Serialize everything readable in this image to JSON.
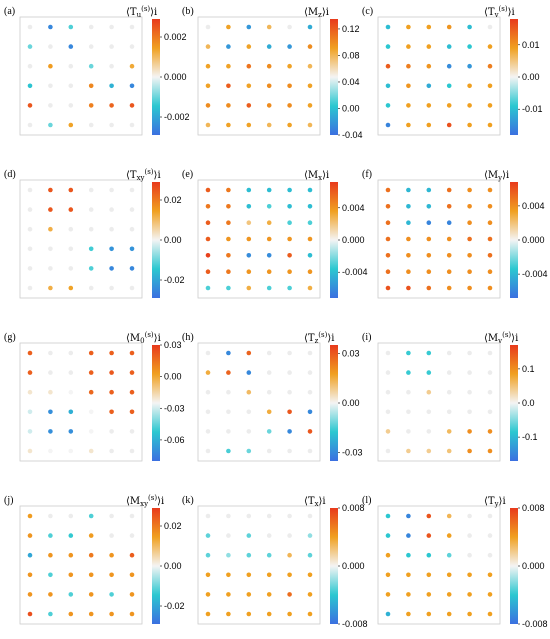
{
  "colors": {
    "stops": [
      [
        0.0,
        "#3b6fe0"
      ],
      [
        0.25,
        "#2bc7d0"
      ],
      [
        0.5,
        "#f4f4f4"
      ],
      [
        0.75,
        "#f0a020"
      ],
      [
        1.0,
        "#e83a1c"
      ]
    ],
    "frame": "#cccccc"
  },
  "chart_data": [
    {
      "type": "scatter",
      "label": "(a)",
      "quantity": "⟨T",
      "qty_sub": "u",
      "qty_sup": "(s)",
      "qty_tail": "⟩i",
      "cbar_range": [
        -0.0029,
        0.0029
      ],
      "cbar_ticks": [
        "0.002",
        "0.000",
        "-0.002"
      ],
      "cbar_tick_values": [
        0.002,
        0.0,
        -0.002
      ],
      "grid": [
        [
          0,
          -0.0025,
          -0.0012,
          0,
          0,
          0
        ],
        [
          -0.001,
          0.0,
          -0.0025,
          0,
          0,
          0
        ],
        [
          0,
          0.0015,
          0,
          -0.001,
          0,
          0.0013
        ],
        [
          -0.0015,
          0,
          0,
          0.0018,
          -0.0018,
          -0.0025
        ],
        [
          0.0025,
          0,
          0,
          0.0019,
          0.0023,
          0.0025
        ],
        [
          0,
          -0.001,
          0.0014,
          0,
          0,
          0
        ]
      ]
    },
    {
      "type": "scatter",
      "label": "(b)",
      "quantity": "⟨M",
      "qty_sub": "z",
      "qty_sup": "",
      "qty_tail": "⟩i",
      "cbar_range": [
        -0.04,
        0.135
      ],
      "cbar_ticks": [
        "0.12",
        "0.08",
        "0.04",
        "0.00",
        "-0.04"
      ],
      "cbar_tick_values": [
        0.12,
        0.08,
        0.04,
        0.0,
        -0.04
      ],
      "grid": [
        [
          0.0,
          0.09,
          -0.02,
          0.08,
          0.0,
          -0.01
        ],
        [
          0.08,
          -0.02,
          0.09,
          -0.01,
          -0.02,
          0.1
        ],
        [
          0.09,
          0.09,
          0.11,
          0.1,
          0.09,
          0.08
        ],
        [
          0.09,
          0.12,
          0.09,
          0.1,
          0.1,
          0.09
        ],
        [
          0.1,
          0.1,
          0.12,
          0.1,
          0.1,
          0.09
        ],
        [
          0.08,
          0.09,
          0.09,
          0.08,
          0.09,
          0.08
        ]
      ]
    },
    {
      "type": "scatter",
      "label": "(c)",
      "quantity": "⟨T",
      "qty_sub": "v",
      "qty_sup": "(s)",
      "qty_tail": "⟩i",
      "cbar_range": [
        -0.018,
        0.018
      ],
      "cbar_ticks": [
        "0.01",
        "0.00",
        "-0.01"
      ],
      "cbar_tick_values": [
        0.01,
        0.0,
        -0.01
      ],
      "grid": [
        [
          -0.01,
          0.009,
          0.009,
          0.01,
          -0.01,
          0.0
        ],
        [
          -0.009,
          0.009,
          0.009,
          -0.01,
          -0.009,
          0.009
        ],
        [
          0.015,
          0.012,
          0.01,
          -0.015,
          -0.014,
          0.012
        ],
        [
          -0.01,
          0.01,
          -0.012,
          -0.009,
          0.009,
          0.009
        ],
        [
          -0.009,
          0.009,
          0.009,
          0.009,
          0.009,
          0.009
        ],
        [
          -0.016,
          0.009,
          0.009,
          0.016,
          0.009,
          0.009
        ]
      ]
    },
    {
      "type": "scatter",
      "label": "(d)",
      "quantity": "⟨T",
      "qty_sub": "xy",
      "qty_sup": "(s)",
      "qty_tail": "⟩i",
      "cbar_range": [
        -0.029,
        0.029
      ],
      "cbar_ticks": [
        "0.02",
        "0.00",
        "-0.02"
      ],
      "cbar_tick_values": [
        0.02,
        0.0,
        -0.02
      ],
      "grid": [
        [
          0,
          0.025,
          0.025,
          0,
          0,
          0
        ],
        [
          0,
          0.025,
          0.025,
          0,
          0,
          0
        ],
        [
          0,
          0.012,
          0,
          0,
          0,
          0
        ],
        [
          0,
          0,
          0,
          -0.013,
          -0.023,
          -0.023
        ],
        [
          0,
          0,
          0,
          -0.012,
          -0.025,
          -0.025
        ],
        [
          0,
          0.012,
          0.014,
          0,
          0,
          0
        ]
      ]
    },
    {
      "type": "scatter",
      "label": "(e)",
      "quantity": "⟨M",
      "qty_sub": "x",
      "qty_sup": "",
      "qty_tail": "⟩i",
      "cbar_range": [
        -0.0072,
        0.0072
      ],
      "cbar_ticks": [
        "0.004",
        "0.000",
        "-0.004"
      ],
      "cbar_tick_values": [
        0.004,
        0.0,
        -0.004
      ],
      "grid": [
        [
          0.006,
          0.005,
          -0.004,
          -0.004,
          -0.004,
          -0.004
        ],
        [
          0.005,
          0.005,
          -0.004,
          -0.003,
          -0.004,
          -0.004
        ],
        [
          0.006,
          0.005,
          0.002,
          0.003,
          -0.003,
          -0.003
        ],
        [
          0.006,
          0.004,
          0.004,
          0.004,
          0.004,
          0.004
        ],
        [
          0.007,
          0.005,
          -0.006,
          -0.006,
          0.006,
          -0.004
        ],
        [
          0.006,
          0.005,
          0.004,
          0.004,
          0.004,
          0.004
        ],
        [
          -0.003,
          -0.003,
          0.003,
          -0.003,
          -0.003,
          0.003
        ]
      ]
    },
    {
      "type": "scatter",
      "label": "(f)",
      "quantity": "⟨M",
      "qty_sub": "y",
      "qty_sup": "",
      "qty_tail": "⟩i",
      "cbar_range": [
        -0.0068,
        0.0068
      ],
      "cbar_ticks": [
        "0.004",
        "0.000",
        "-0.004"
      ],
      "cbar_tick_values": [
        0.004,
        0.0,
        -0.004
      ],
      "grid": [
        [
          0.005,
          -0.004,
          -0.004,
          0.005,
          0.004,
          0.004
        ],
        [
          0.005,
          -0.004,
          -0.004,
          0.005,
          0.004,
          0.004
        ],
        [
          0.005,
          -0.004,
          -0.006,
          -0.006,
          0.004,
          0.004
        ],
        [
          0.005,
          0.004,
          0.004,
          0.004,
          0.005,
          0.005
        ],
        [
          0.005,
          0.004,
          0.004,
          0.004,
          0.004,
          0.005
        ],
        [
          0.005,
          0.004,
          0.004,
          0.004,
          0.004,
          0.004
        ],
        [
          0.006,
          0.006,
          0.005,
          0.004,
          0.004,
          0.004
        ]
      ]
    },
    {
      "type": "scatter",
      "label": "(g)",
      "quantity": "⟨M",
      "qty_sub": "0",
      "qty_sup": "(s)",
      "qty_tail": "⟩i",
      "cbar_range": [
        -0.08,
        0.03
      ],
      "cbar_ticks": [
        "0.03",
        "0.00",
        "-0.03",
        "-0.06"
      ],
      "cbar_tick_values": [
        0.03,
        0.0,
        -0.03,
        -0.06
      ],
      "grid": [
        [
          0.02,
          0,
          0,
          0.02,
          0.02,
          0.02
        ],
        [
          0.02,
          0,
          0,
          0.02,
          0.022,
          0.02
        ],
        [
          -0.02,
          -0.02,
          -0.025,
          0.018,
          0.02,
          0.02
        ],
        [
          -0.03,
          -0.07,
          -0.06,
          -0.025,
          0.02,
          0.02
        ],
        [
          -0.03,
          -0.07,
          -0.07,
          -0.025,
          0,
          0
        ],
        [
          -0.02,
          -0.025,
          -0.025,
          -0.02,
          0,
          0
        ]
      ]
    },
    {
      "type": "scatter",
      "label": "(h)",
      "quantity": "⟨T",
      "qty_sub": "z",
      "qty_sup": "(s)",
      "qty_tail": "⟩i",
      "cbar_range": [
        -0.035,
        0.035
      ],
      "cbar_ticks": [
        "0.03",
        "0.00",
        "-0.03"
      ],
      "cbar_tick_values": [
        0.03,
        0.0,
        -0.03
      ],
      "grid": [
        [
          0,
          -0.03,
          0.028,
          0,
          0,
          0
        ],
        [
          0.015,
          0.028,
          -0.03,
          0,
          0,
          0
        ],
        [
          0,
          0,
          0.012,
          0,
          0,
          0
        ],
        [
          0,
          0,
          0,
          0.015,
          0.03,
          -0.03
        ],
        [
          0,
          0,
          0,
          -0.012,
          -0.03,
          0.03
        ],
        [
          0,
          -0.015,
          -0.012,
          0,
          0,
          0
        ]
      ]
    },
    {
      "type": "scatter",
      "label": "(i)",
      "quantity": "⟨M",
      "qty_sub": "v",
      "qty_sup": "(s)",
      "qty_tail": "⟩i",
      "cbar_range": [
        -0.17,
        0.17
      ],
      "cbar_ticks": [
        "0.1",
        "0.0",
        "-0.1"
      ],
      "cbar_tick_values": [
        0.1,
        0.0,
        -0.1
      ],
      "grid": [
        [
          0,
          -0.08,
          -0.08,
          0,
          0,
          0
        ],
        [
          0,
          -0.08,
          -0.08,
          0,
          0,
          0
        ],
        [
          0,
          0,
          0.04,
          0,
          0,
          0
        ],
        [
          0,
          0,
          0,
          0,
          0,
          0
        ],
        [
          0.04,
          0,
          0,
          0.06,
          0.1,
          0.1
        ],
        [
          0,
          0.04,
          0.04,
          0.05,
          0.1,
          0.1
        ]
      ]
    },
    {
      "type": "scatter",
      "label": "(j)",
      "quantity": "⟨M",
      "qty_sub": "xy",
      "qty_sup": "(s)",
      "qty_tail": "⟩i",
      "cbar_range": [
        -0.029,
        0.029
      ],
      "cbar_ticks": [
        "0.02",
        "0.00",
        "-0.02"
      ],
      "cbar_tick_values": [
        0.02,
        0.0,
        -0.02
      ],
      "grid": [
        [
          0.015,
          0,
          0,
          -0.012,
          0,
          0
        ],
        [
          0.016,
          -0.012,
          -0.014,
          0.015,
          0,
          0
        ],
        [
          -0.02,
          0.016,
          0.016,
          0.02,
          0.016,
          0.024
        ],
        [
          0.016,
          -0.012,
          0.016,
          0.016,
          0.016,
          0.016
        ],
        [
          0.016,
          0.016,
          -0.012,
          0.016,
          -0.012,
          0.016
        ],
        [
          0.026,
          -0.012,
          0.016,
          0.016,
          0.016,
          0.016
        ]
      ]
    },
    {
      "type": "scatter",
      "label": "(k)",
      "quantity": "⟨T",
      "qty_sub": "x",
      "qty_sup": "",
      "qty_tail": "⟩i",
      "cbar_range": [
        -0.008,
        0.008
      ],
      "cbar_ticks": [
        "0.008",
        "0.000",
        "-0.008"
      ],
      "cbar_tick_values": [
        0.008,
        0.0,
        -0.008
      ],
      "grid": [
        [
          0,
          0,
          0,
          0,
          0,
          0
        ],
        [
          -0.003,
          0,
          -0.003,
          0,
          0,
          -0.002
        ],
        [
          -0.003,
          -0.002,
          -0.003,
          -0.003,
          0.003,
          -0.003
        ],
        [
          0.004,
          0.004,
          0.004,
          0.004,
          0.004,
          0.004
        ],
        [
          0.004,
          0.004,
          0.004,
          0.004,
          0.006,
          0.004
        ],
        [
          0.004,
          0.004,
          0.004,
          0.004,
          0.004,
          0.004
        ]
      ]
    },
    {
      "type": "scatter",
      "label": "(l)",
      "quantity": "⟨T",
      "qty_sub": "y",
      "qty_sup": "",
      "qty_tail": "⟩i",
      "cbar_range": [
        -0.008,
        0.008
      ],
      "cbar_ticks": [
        "0.008",
        "0.000",
        "-0.008"
      ],
      "cbar_tick_values": [
        0.008,
        0.0,
        -0.008
      ],
      "grid": [
        [
          -0.004,
          -0.007,
          0.007,
          0.003,
          0,
          0
        ],
        [
          -0.004,
          -0.007,
          0.007,
          0.004,
          0,
          0
        ],
        [
          0.004,
          -0.004,
          -0.004,
          -0.003,
          0,
          0
        ],
        [
          0.004,
          0.004,
          0.004,
          0.004,
          0.004,
          0.004
        ],
        [
          0.004,
          0.004,
          0.004,
          0.004,
          0.004,
          0.004
        ],
        [
          -0.005,
          0.004,
          0.004,
          0.004,
          0.004,
          0.004
        ]
      ]
    }
  ]
}
